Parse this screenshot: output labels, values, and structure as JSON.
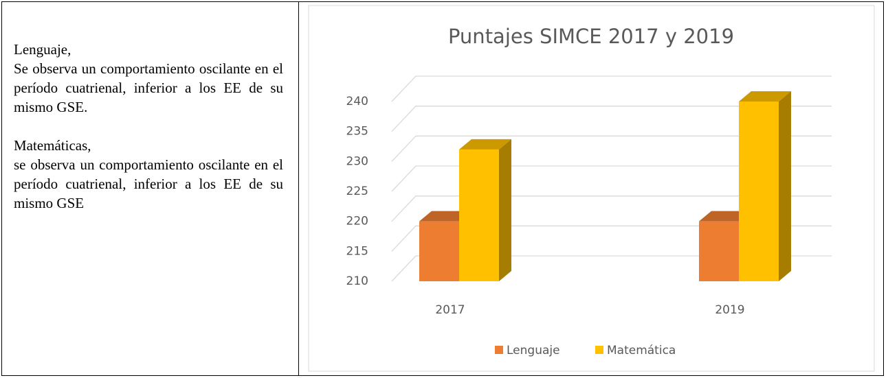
{
  "text": {
    "paragraphs": [
      {
        "heading": "Lenguaje,",
        "body": "Se observa un comportamiento oscilante en el período cuatrienal, inferior a los EE de su mismo GSE."
      },
      {
        "heading": "Matemáticas,",
        "body": "se observa un comportamiento oscilante en el período cuatrienal, inferior a los EE de su mismo GSE"
      }
    ]
  },
  "chart_data": {
    "type": "bar3d",
    "title": "Puntajes SIMCE 2017 y 2019",
    "categories": [
      "2017",
      "2019"
    ],
    "series": [
      {
        "name": "Lenguaje",
        "color": "#ED7D31",
        "values": [
          220,
          220
        ]
      },
      {
        "name": "Matemática",
        "color": "#FFC000",
        "values": [
          232,
          240
        ]
      }
    ],
    "ylim": [
      210,
      240
    ],
    "yticks": [
      210,
      215,
      220,
      225,
      230,
      235,
      240
    ],
    "grid": true,
    "legend": "bottom"
  }
}
